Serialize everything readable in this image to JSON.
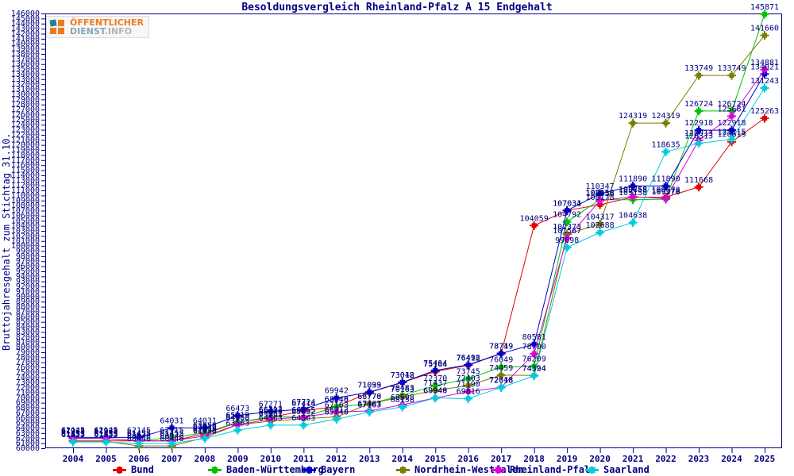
{
  "title": "Besoldungsvergleich Rheinland-Pfalz A 15 Endgehalt",
  "y_axis_title": "Bruttojahresgehalt zum Stichtag 31.10.",
  "logo": {
    "line1": "ÖFFENTLICHER",
    "line2_a": "DIENST",
    "line2_b": ".INFO"
  },
  "colors": {
    "axis": "#000080",
    "title": "#000080",
    "point_label": "#000080",
    "logo_orange": "#ef7a1e",
    "logo_teal": "#2e7f96",
    "logo_grey": "#b3b3b3"
  },
  "chart_data": {
    "type": "line",
    "title": "Besoldungsvergleich Rheinland-Pfalz A 15 Endgehalt",
    "xlabel": "",
    "ylabel": "Bruttojahresgehalt zum Stichtag 31.10.",
    "x": [
      2004,
      2005,
      2006,
      2007,
      2008,
      2009,
      2010,
      2011,
      2012,
      2013,
      2014,
      2015,
      2016,
      2017,
      2018,
      2019,
      2020,
      2021,
      2022,
      2023,
      2024,
      2025
    ],
    "ylim": [
      60000,
      146000
    ],
    "ytick_step": 1000,
    "grid": false,
    "point_labels": true,
    "legend_position": "bottom",
    "series": [
      {
        "name": "Bund",
        "color": "#e00000",
        "values": [
          61455,
          61455,
          61455,
          61455,
          62843,
          65113,
          66104,
          67414,
          68246,
          71033,
          73012,
          75164,
          76412,
          78719,
          104059,
          107031,
          108178,
          109658,
          109678,
          111668,
          120619,
          125263
        ]
      },
      {
        "name": "Baden-Württemberg",
        "color": "#00c400",
        "values": [
          61933,
          61933,
          61455,
          62115,
          63058,
          65119,
          66212,
          66155,
          68240,
          68776,
          70483,
          72370,
          73745,
          76049,
          76209,
          104792,
          109158,
          109158,
          109278,
          126724,
          126724,
          145871
        ]
      },
      {
        "name": "Bayern",
        "color": "#0000cc",
        "values": [
          62145,
          62145,
          62145,
          64031,
          64031,
          66473,
          67271,
          67724,
          69942,
          71099,
          73048,
          75404,
          76498,
          78749,
          80581,
          107034,
          110347,
          111890,
          111890,
          122918,
          122918,
          134021
        ]
      },
      {
        "name": "Nordrhein-Westfalen",
        "color": "#7d7d00",
        "values": [
          61355,
          61355,
          60446,
          60446,
          62098,
          64658,
          65361,
          65832,
          66212,
          68770,
          70163,
          71437,
          72403,
          74459,
          74394,
          102373,
          104317,
          124319,
          124319,
          133749,
          133749,
          141660
        ]
      },
      {
        "name": "Rheinland-Pfalz",
        "color": "#dd00dd",
        "values": [
          61933,
          61933,
          61455,
          61455,
          62415,
          64663,
          65740,
          66155,
          67163,
          67403,
          68598,
          69949,
          71190,
          72048,
          78700,
          101567,
          108958,
          109758,
          109378,
          120913,
          125681,
          134881
        ]
      },
      {
        "name": "Saarland",
        "color": "#00ccdd",
        "values": [
          61233,
          61233,
          60946,
          60946,
          61938,
          63563,
          64563,
          64563,
          65740,
          67163,
          68158,
          69946,
          69816,
          72018,
          74324,
          99698,
          102688,
          104638,
          118635,
          120313,
          121115,
          131243
        ]
      }
    ]
  }
}
